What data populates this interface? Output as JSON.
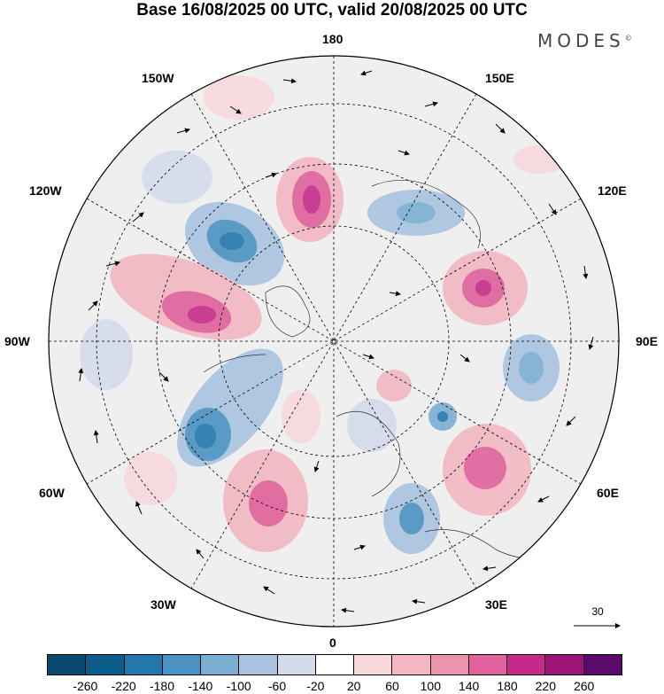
{
  "title": "Base 16/08/2025 00 UTC, valid 20/08/2025 00 UTC",
  "brand": "MODES",
  "brand_mark": "©",
  "lon_labels": {
    "l180": "180",
    "l150w": "150W",
    "l150e": "150E",
    "l120w": "120W",
    "l120e": "120E",
    "l90w": "90W",
    "l90e": "90E",
    "l60w": "60W",
    "l60e": "60E",
    "l30w": "30W",
    "l30e": "30E",
    "l0": "0"
  },
  "vector_reference": {
    "label": "30"
  },
  "colorbar": {
    "colors": [
      "#0b4a6f",
      "#0d5d8c",
      "#2277ad",
      "#4a93c2",
      "#7aaed2",
      "#a9c3df",
      "#d4dbeb",
      "#ffffff",
      "#f8d8dd",
      "#f2b7c2",
      "#ec93ae",
      "#e0619b",
      "#c52a8a",
      "#9c1477",
      "#5b0a6b"
    ],
    "ticks": [
      "-260",
      "-220",
      "-180",
      "-140",
      "-100",
      "-60",
      "-20",
      "20",
      "60",
      "100",
      "140",
      "180",
      "220",
      "260"
    ]
  }
}
